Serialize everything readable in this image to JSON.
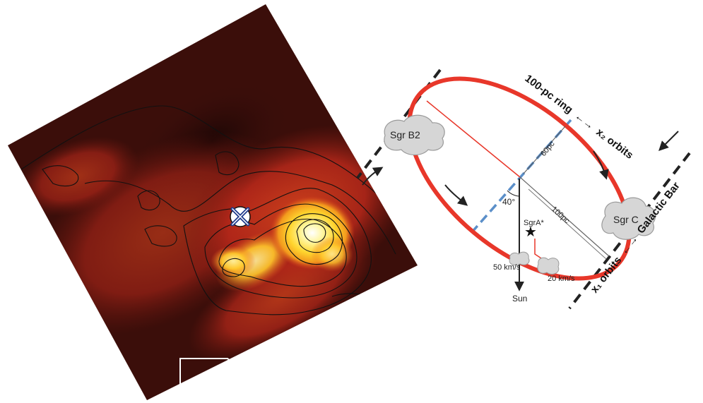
{
  "colors": {
    "ring": "#e8372a",
    "dashed_blue": "#5b8fc9",
    "bar_line": "#222222",
    "cloud_fill": "#d6d6d6",
    "cloud_stroke": "#9a9a9a",
    "map_dark": "#2a0a08",
    "map_mid": "#7a1a12",
    "map_bright": "#d9341e",
    "map_orange": "#f08a1c",
    "map_yellow": "#ffe23a",
    "map_peak": "#ffffff"
  },
  "left_panel": {
    "kind": "rotated-emission-map",
    "markers": [
      "cross-marker",
      "cross-marker-blue"
    ]
  },
  "diagram": {
    "ring_label": "100-pc ring",
    "ring_orbit_label": "x₂ orbits",
    "bar_label": "Galactic Bar",
    "bar_orbit_label": "x₁ orbits",
    "arrow_symbol": "←→",
    "cloud_b2": "Sgr B2",
    "cloud_c": "Sgr C",
    "sgra": "SgrA*",
    "angle": "40°",
    "dist_60": "60pc",
    "dist_100": "100pc",
    "vel_50": "50 km/s",
    "vel_20": "20 km/s",
    "sun": "Sun",
    "star_icon": "star-icon"
  }
}
